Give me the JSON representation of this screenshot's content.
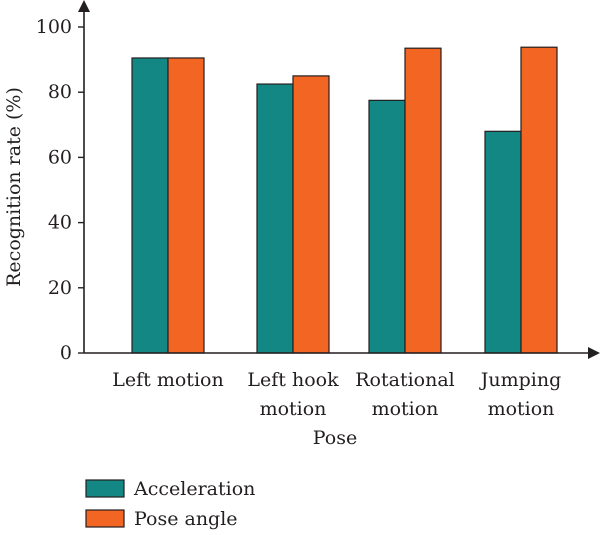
{
  "chart_data": {
    "type": "bar",
    "categories": [
      [
        "Left motion"
      ],
      [
        "Left hook",
        "motion"
      ],
      [
        "Rotational",
        "motion"
      ],
      [
        "Jumping",
        "motion"
      ]
    ],
    "series": [
      {
        "name": "Acceleration",
        "values": [
          90.5,
          82.5,
          77.5,
          68.0
        ],
        "color": "#138784"
      },
      {
        "name": "Pose angle",
        "values": [
          90.5,
          85.0,
          93.5,
          93.8
        ],
        "color": "#f26522"
      }
    ],
    "xlabel": "Pose",
    "ylabel": "Recognition rate (%)",
    "ylim": [
      0,
      100
    ],
    "yticks": [
      0,
      20,
      40,
      60,
      80,
      100
    ],
    "grid": false,
    "legend_position": "bottom-left"
  }
}
